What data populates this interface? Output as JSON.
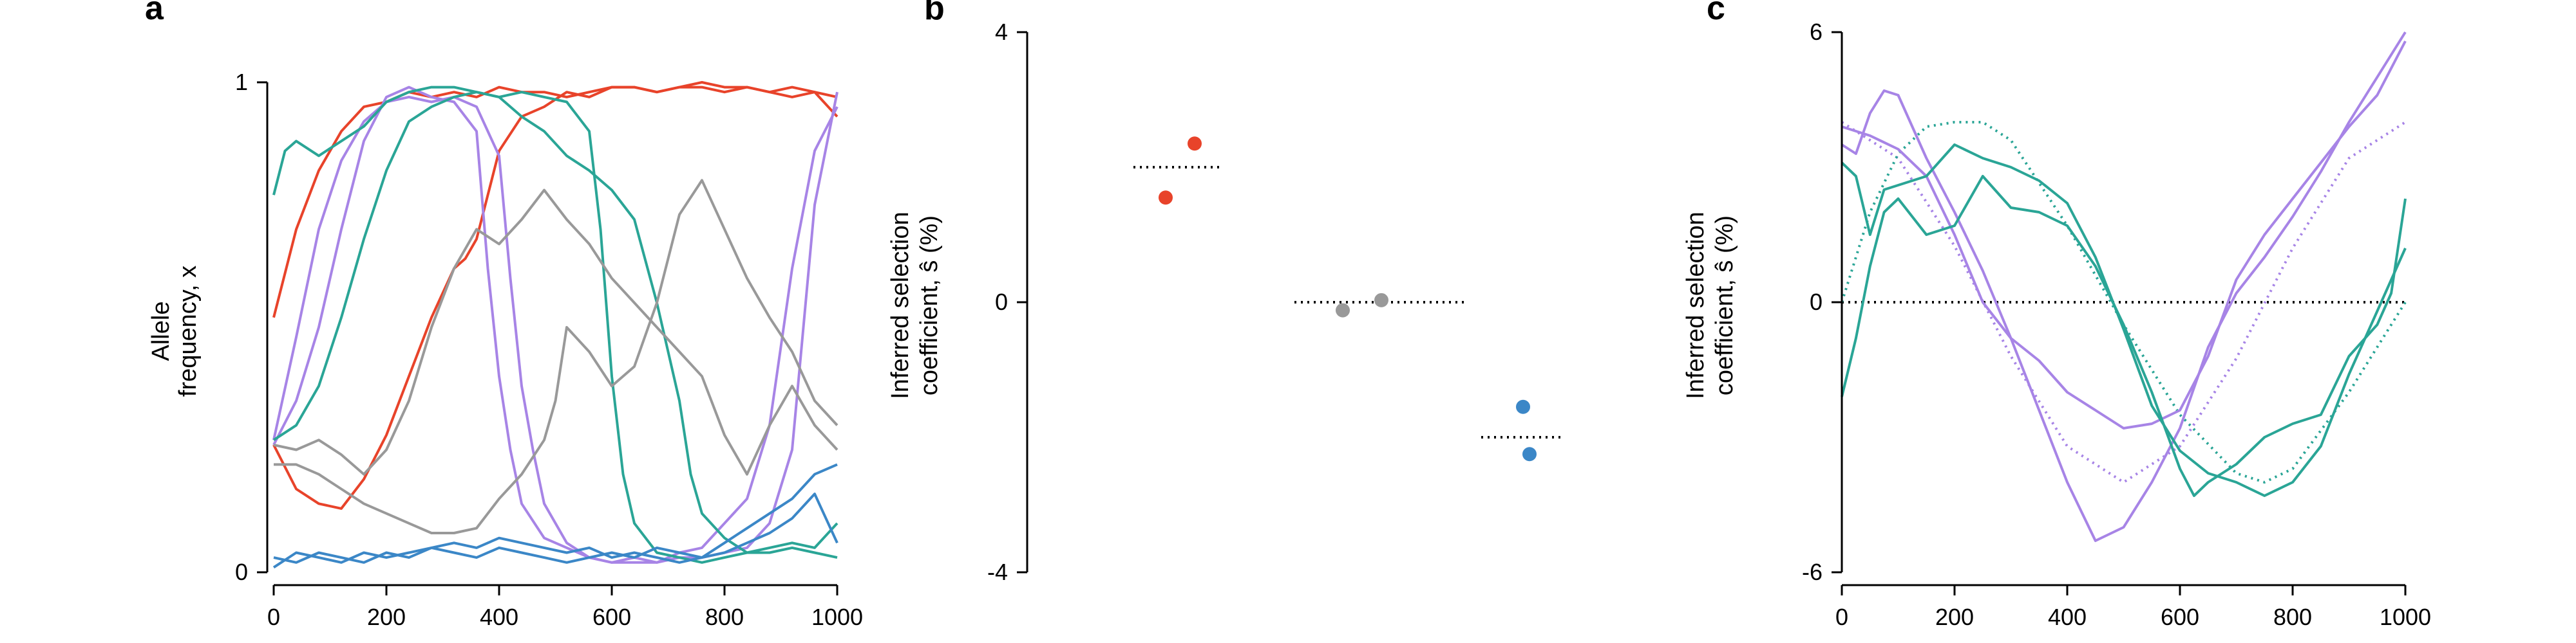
{
  "colors": {
    "red": "#e8432a",
    "purple": "#a784e6",
    "teal": "#2aa596",
    "gray": "#999999",
    "blue": "#3b87c7"
  },
  "chart_data": [
    {
      "panel": "a",
      "type": "line",
      "xlabel": "",
      "ylabel_line1": "Allele",
      "ylabel_line2": "frequency, x",
      "xlim": [
        0,
        1000
      ],
      "ylim": [
        0,
        1
      ],
      "xticks": [
        "0",
        "200",
        "400",
        "600",
        "800",
        "1000"
      ],
      "yticks": [
        "0",
        "1"
      ],
      "series": [
        {
          "color": "red",
          "x": [
            0,
            40,
            80,
            120,
            160,
            200,
            240,
            280,
            320,
            360,
            400,
            440,
            480,
            520,
            560,
            600,
            640,
            680,
            720,
            760,
            800,
            840,
            880,
            920,
            960,
            1000
          ],
          "y": [
            0.52,
            0.7,
            0.82,
            0.9,
            0.95,
            0.96,
            0.98,
            0.97,
            0.98,
            0.97,
            0.99,
            0.98,
            0.98,
            0.97,
            0.98,
            0.99,
            0.99,
            0.98,
            0.99,
            0.99,
            0.98,
            0.99,
            0.98,
            0.97,
            0.98,
            0.93
          ]
        },
        {
          "color": "red",
          "x": [
            0,
            40,
            80,
            120,
            160,
            200,
            240,
            280,
            320,
            340,
            360,
            400,
            440,
            480,
            520,
            560,
            600,
            640,
            680,
            720,
            760,
            800,
            840,
            880,
            920,
            960,
            1000
          ],
          "y": [
            0.26,
            0.17,
            0.14,
            0.13,
            0.19,
            0.28,
            0.4,
            0.52,
            0.62,
            0.64,
            0.68,
            0.86,
            0.93,
            0.95,
            0.98,
            0.97,
            0.99,
            0.99,
            0.98,
            0.99,
            1.0,
            0.99,
            0.99,
            0.98,
            0.99,
            0.98,
            0.97
          ]
        },
        {
          "color": "purple",
          "x": [
            0,
            40,
            80,
            120,
            160,
            200,
            240,
            280,
            320,
            360,
            380,
            400,
            420,
            440,
            480,
            520,
            560,
            600,
            640,
            680,
            720,
            760,
            800,
            840,
            880,
            920,
            960,
            1000
          ],
          "y": [
            0.26,
            0.35,
            0.5,
            0.7,
            0.88,
            0.97,
            0.99,
            0.97,
            0.96,
            0.9,
            0.62,
            0.4,
            0.25,
            0.14,
            0.07,
            0.05,
            0.03,
            0.02,
            0.02,
            0.02,
            0.03,
            0.03,
            0.04,
            0.05,
            0.1,
            0.25,
            0.75,
            0.98
          ]
        },
        {
          "color": "purple",
          "x": [
            0,
            40,
            80,
            120,
            160,
            200,
            240,
            280,
            320,
            360,
            400,
            420,
            440,
            460,
            480,
            520,
            560,
            600,
            640,
            680,
            720,
            760,
            800,
            840,
            880,
            920,
            960,
            1000
          ],
          "y": [
            0.27,
            0.48,
            0.7,
            0.84,
            0.92,
            0.96,
            0.97,
            0.96,
            0.97,
            0.95,
            0.85,
            0.6,
            0.38,
            0.25,
            0.14,
            0.06,
            0.03,
            0.02,
            0.03,
            0.02,
            0.04,
            0.05,
            0.1,
            0.15,
            0.3,
            0.62,
            0.86,
            0.95
          ]
        },
        {
          "color": "teal",
          "x": [
            0,
            20,
            40,
            80,
            120,
            160,
            200,
            240,
            280,
            320,
            360,
            400,
            440,
            480,
            520,
            560,
            580,
            600,
            620,
            640,
            680,
            720,
            760,
            800,
            840,
            880,
            920,
            960,
            1000
          ],
          "y": [
            0.77,
            0.86,
            0.88,
            0.85,
            0.88,
            0.91,
            0.96,
            0.98,
            0.99,
            0.99,
            0.98,
            0.97,
            0.98,
            0.97,
            0.96,
            0.9,
            0.7,
            0.4,
            0.2,
            0.1,
            0.04,
            0.03,
            0.02,
            0.03,
            0.04,
            0.05,
            0.06,
            0.05,
            0.1
          ]
        },
        {
          "color": "teal",
          "x": [
            0,
            40,
            80,
            120,
            160,
            200,
            240,
            280,
            320,
            360,
            400,
            440,
            480,
            520,
            560,
            600,
            640,
            680,
            720,
            740,
            760,
            800,
            840,
            880,
            920,
            960,
            1000
          ],
          "y": [
            0.27,
            0.3,
            0.38,
            0.52,
            0.68,
            0.82,
            0.92,
            0.95,
            0.97,
            0.98,
            0.97,
            0.93,
            0.9,
            0.85,
            0.82,
            0.78,
            0.72,
            0.55,
            0.35,
            0.2,
            0.12,
            0.07,
            0.04,
            0.04,
            0.05,
            0.04,
            0.03
          ]
        },
        {
          "color": "gray",
          "x": [
            0,
            40,
            80,
            120,
            160,
            200,
            240,
            280,
            320,
            360,
            400,
            440,
            480,
            500,
            520,
            560,
            600,
            640,
            680,
            720,
            760,
            800,
            840,
            880,
            920,
            960,
            1000
          ],
          "y": [
            0.22,
            0.22,
            0.2,
            0.17,
            0.14,
            0.12,
            0.1,
            0.08,
            0.08,
            0.09,
            0.15,
            0.2,
            0.27,
            0.35,
            0.5,
            0.45,
            0.38,
            0.42,
            0.55,
            0.73,
            0.8,
            0.7,
            0.6,
            0.52,
            0.45,
            0.35,
            0.3
          ]
        },
        {
          "color": "gray",
          "x": [
            0,
            40,
            80,
            120,
            160,
            200,
            240,
            280,
            320,
            360,
            400,
            440,
            480,
            520,
            560,
            600,
            640,
            680,
            720,
            760,
            800,
            840,
            880,
            920,
            960,
            1000
          ],
          "y": [
            0.26,
            0.25,
            0.27,
            0.24,
            0.2,
            0.25,
            0.35,
            0.5,
            0.62,
            0.7,
            0.67,
            0.72,
            0.78,
            0.72,
            0.67,
            0.6,
            0.55,
            0.5,
            0.45,
            0.4,
            0.28,
            0.2,
            0.3,
            0.38,
            0.3,
            0.25
          ]
        },
        {
          "color": "blue",
          "x": [
            0,
            40,
            80,
            120,
            160,
            200,
            240,
            280,
            320,
            360,
            400,
            440,
            480,
            520,
            560,
            600,
            640,
            680,
            720,
            760,
            800,
            840,
            880,
            920,
            960,
            1000
          ],
          "y": [
            0.01,
            0.04,
            0.03,
            0.02,
            0.04,
            0.03,
            0.04,
            0.05,
            0.06,
            0.05,
            0.07,
            0.06,
            0.05,
            0.04,
            0.05,
            0.03,
            0.04,
            0.03,
            0.02,
            0.03,
            0.06,
            0.09,
            0.12,
            0.15,
            0.2,
            0.22
          ]
        },
        {
          "color": "blue",
          "x": [
            0,
            40,
            80,
            120,
            160,
            200,
            240,
            280,
            320,
            360,
            400,
            440,
            480,
            520,
            560,
            600,
            640,
            680,
            720,
            760,
            800,
            840,
            880,
            920,
            960,
            1000
          ],
          "y": [
            0.03,
            0.02,
            0.04,
            0.03,
            0.02,
            0.04,
            0.03,
            0.05,
            0.04,
            0.03,
            0.05,
            0.04,
            0.03,
            0.02,
            0.03,
            0.04,
            0.03,
            0.05,
            0.04,
            0.03,
            0.04,
            0.06,
            0.08,
            0.11,
            0.16,
            0.06
          ]
        }
      ]
    },
    {
      "panel": "b",
      "type": "scatter",
      "xlabel": "",
      "ylabel_line1": "Inferred selection",
      "ylabel_line2": "coefficient, ŝ (%)",
      "ylim": [
        -4,
        4
      ],
      "yticks": [
        "-4",
        "0",
        "4"
      ],
      "groups": [
        {
          "color": "red",
          "true_value": 2.0,
          "points": [
            2.35,
            1.55
          ]
        },
        {
          "color": "gray",
          "true_value": 0.0,
          "points": [
            -0.12,
            0.03
          ]
        },
        {
          "color": "blue",
          "true_value": -2.0,
          "points": [
            -1.55,
            -2.25
          ]
        }
      ]
    },
    {
      "panel": "c",
      "type": "line",
      "xlabel": "",
      "ylabel_line1": "Inferred selection",
      "ylabel_line2": "coefficient, ŝ (%)",
      "xlim": [
        0,
        1000
      ],
      "ylim": [
        -6,
        6
      ],
      "xticks": [
        "0",
        "200",
        "400",
        "600",
        "800",
        "1000"
      ],
      "yticks": [
        "-6",
        "0",
        "6"
      ],
      "true_series": [
        {
          "color": "purple",
          "x": [
            0,
            100,
            200,
            300,
            400,
            500,
            600,
            700,
            800,
            900,
            1000
          ],
          "y": [
            4.0,
            3.2,
            1.25,
            -1.2,
            -3.2,
            -4.0,
            -3.2,
            -1.25,
            1.2,
            3.2,
            4.0
          ]
        },
        {
          "color": "teal",
          "x": [
            0,
            50,
            100,
            150,
            200,
            250,
            300,
            400,
            500,
            600,
            700,
            750,
            800,
            900,
            1000
          ],
          "y": [
            0.0,
            2.0,
            3.3,
            3.9,
            4.0,
            4.0,
            3.6,
            1.7,
            -0.5,
            -2.5,
            -3.8,
            -4.0,
            -3.7,
            -2.0,
            0.0
          ]
        }
      ],
      "inferred_series": [
        {
          "color": "purple",
          "x": [
            0,
            25,
            50,
            75,
            100,
            150,
            200,
            250,
            300,
            350,
            400,
            450,
            500,
            550,
            600,
            650,
            700,
            750,
            800,
            850,
            900,
            950,
            1000
          ],
          "y": [
            3.5,
            3.3,
            4.2,
            4.7,
            4.6,
            3.2,
            2.0,
            0.7,
            -0.8,
            -2.4,
            -4.0,
            -5.3,
            -5.0,
            -4.0,
            -2.8,
            -1.0,
            0.2,
            1.0,
            1.9,
            2.9,
            4.0,
            5.0,
            6.0
          ]
        },
        {
          "color": "purple",
          "x": [
            0,
            50,
            100,
            150,
            200,
            250,
            300,
            350,
            400,
            450,
            500,
            550,
            600,
            650,
            700,
            750,
            800,
            850,
            900,
            950,
            1000
          ],
          "y": [
            3.9,
            3.7,
            3.4,
            2.8,
            1.5,
            0.0,
            -0.8,
            -1.3,
            -2.0,
            -2.4,
            -2.8,
            -2.7,
            -2.4,
            -1.2,
            0.5,
            1.5,
            2.3,
            3.1,
            3.9,
            4.6,
            5.8
          ]
        },
        {
          "color": "teal",
          "x": [
            0,
            25,
            50,
            75,
            100,
            150,
            200,
            250,
            300,
            350,
            400,
            450,
            500,
            550,
            600,
            625,
            650,
            700,
            750,
            800,
            850,
            900,
            950,
            975,
            1000
          ],
          "y": [
            -2.1,
            -0.8,
            0.8,
            2.0,
            2.3,
            1.5,
            1.7,
            2.8,
            2.1,
            2.0,
            1.7,
            0.8,
            -0.5,
            -2.0,
            -3.7,
            -4.3,
            -4.0,
            -3.6,
            -3.0,
            -2.7,
            -2.5,
            -1.2,
            -0.5,
            0.2,
            2.3
          ]
        },
        {
          "color": "teal",
          "x": [
            0,
            25,
            50,
            75,
            100,
            150,
            200,
            250,
            300,
            350,
            400,
            450,
            500,
            550,
            600,
            650,
            700,
            750,
            800,
            850,
            900,
            950,
            1000
          ],
          "y": [
            3.1,
            2.8,
            1.5,
            2.5,
            2.6,
            2.8,
            3.5,
            3.2,
            3.0,
            2.7,
            2.2,
            1.0,
            -0.6,
            -2.3,
            -3.3,
            -3.8,
            -4.0,
            -4.3,
            -4.0,
            -3.2,
            -1.6,
            -0.2,
            1.2
          ]
        }
      ]
    }
  ]
}
